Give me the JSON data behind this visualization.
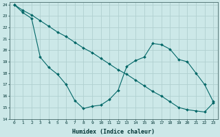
{
  "line1_x": [
    0,
    1,
    2,
    3,
    4,
    5,
    6,
    7,
    8,
    9,
    10,
    11,
    12,
    13,
    14,
    15,
    16,
    17,
    18,
    19,
    20,
    21,
    22,
    23
  ],
  "line1_y": [
    24.0,
    23.3,
    22.8,
    19.4,
    18.5,
    17.9,
    17.0,
    15.6,
    14.9,
    15.1,
    15.2,
    15.7,
    16.5,
    18.6,
    19.1,
    19.4,
    20.6,
    20.5,
    20.1,
    19.2,
    19.0,
    18.0,
    17.0,
    15.5
  ],
  "line2_x": [
    0,
    1,
    2,
    3,
    4,
    5,
    6,
    7,
    8,
    9,
    10,
    11,
    12,
    13,
    14,
    15,
    16,
    17,
    18,
    19,
    20,
    21,
    22,
    23
  ],
  "line2_y": [
    24.0,
    23.5,
    23.1,
    22.6,
    22.1,
    21.6,
    21.2,
    20.7,
    20.2,
    19.8,
    19.3,
    18.8,
    18.3,
    17.9,
    17.4,
    16.9,
    16.4,
    16.0,
    15.5,
    15.0,
    14.8,
    14.7,
    14.6,
    15.4
  ],
  "background_color": "#cce8e8",
  "line_color": "#006666",
  "grid_color": "#b0d0d0",
  "grid_minor_color": "#c0dede",
  "xlabel": "Humidex (Indice chaleur)",
  "ylim": [
    14,
    24
  ],
  "xlim": [
    -0.5,
    23.5
  ],
  "yticks": [
    14,
    15,
    16,
    17,
    18,
    19,
    20,
    21,
    22,
    23,
    24
  ],
  "xticks": [
    0,
    1,
    2,
    3,
    4,
    5,
    6,
    7,
    8,
    9,
    10,
    11,
    12,
    13,
    14,
    15,
    16,
    17,
    18,
    19,
    20,
    21,
    22,
    23
  ]
}
